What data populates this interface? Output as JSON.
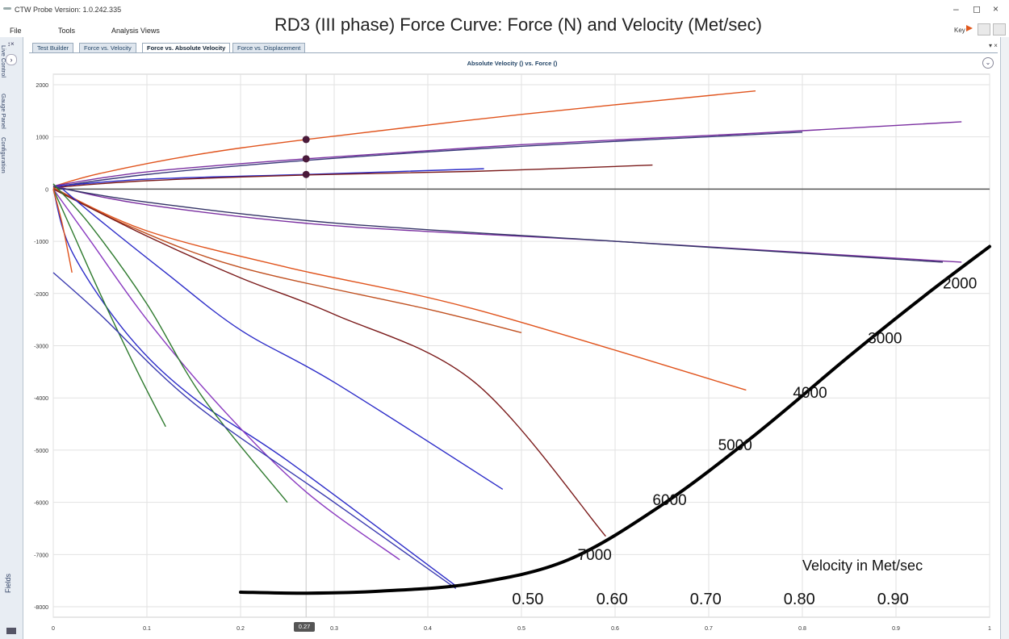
{
  "window": {
    "app_title": "CTW Probe Version: 1.0.242.335",
    "minimize": "–",
    "maximize": "◻",
    "close": "×"
  },
  "overlay_title": "RD3 (III phase) Force Curve: Force (N) and Velocity (Met/sec)",
  "menu": [
    "File",
    "Tools",
    "Analysis Views"
  ],
  "key_label": "Key",
  "tabs": [
    {
      "label": "Test Builder",
      "active": false
    },
    {
      "label": "Force vs. Velocity",
      "active": false
    },
    {
      "label": "Force vs. Absolute Velocity",
      "active": true
    },
    {
      "label": "Force vs. Displacement",
      "active": false
    }
  ],
  "tab_controls": "▾ ×",
  "left_panel": {
    "pin": "↕×",
    "expand": "›",
    "fields_label": "Fields"
  },
  "right_panel_tabs": [
    "Live Control",
    "Gauge Panel",
    "Configuration"
  ],
  "chart": {
    "title": "Absolute Velocity () vs. Force ()",
    "menu_icon": "⌄",
    "cursor_value": "0.27"
  },
  "chart_data": {
    "type": "line",
    "xlim": [
      0,
      1
    ],
    "ylim": [
      -8200,
      2200
    ],
    "x_ticks": [
      "0",
      "0.1",
      "0.2",
      "0.3",
      "0.4",
      "0.5",
      "0.6",
      "0.7",
      "0.8",
      "0.9",
      "1"
    ],
    "y_ticks": [
      "2000",
      "1000",
      "0",
      "-1000",
      "-2000",
      "-3000",
      "-4000",
      "-5000",
      "-6000",
      "-7000",
      "-8000"
    ],
    "grid": true,
    "cursor_x": 0.27,
    "series": [
      {
        "color": "#e0531c",
        "points": [
          [
            0,
            50
          ],
          [
            0.05,
            300
          ],
          [
            0.15,
            650
          ],
          [
            0.27,
            950
          ],
          [
            0.5,
            1430
          ],
          [
            0.75,
            1880
          ]
        ]
      },
      {
        "color": "#7a2fa0",
        "points": [
          [
            0,
            60
          ],
          [
            0.1,
            330
          ],
          [
            0.27,
            580
          ],
          [
            0.5,
            850
          ],
          [
            0.75,
            1070
          ],
          [
            0.97,
            1290
          ]
        ]
      },
      {
        "color": "#3a3a7a",
        "points": [
          [
            0,
            40
          ],
          [
            0.1,
            280
          ],
          [
            0.27,
            550
          ],
          [
            0.5,
            820
          ],
          [
            0.8,
            1090
          ]
        ]
      },
      {
        "color": "#2b2bc8",
        "points": [
          [
            0,
            50
          ],
          [
            0.1,
            190
          ],
          [
            0.27,
            280
          ],
          [
            0.46,
            390
          ]
        ]
      },
      {
        "color": "#7a1a1a",
        "points": [
          [
            0,
            30
          ],
          [
            0.1,
            160
          ],
          [
            0.27,
            270
          ],
          [
            0.45,
            340
          ],
          [
            0.64,
            460
          ]
        ]
      },
      {
        "color": "#7a2fa0",
        "points": [
          [
            0,
            60
          ],
          [
            0.1,
            -300
          ],
          [
            0.3,
            -700
          ],
          [
            0.6,
            -1000
          ],
          [
            0.97,
            -1400
          ]
        ]
      },
      {
        "color": "#333366",
        "points": [
          [
            0,
            40
          ],
          [
            0.1,
            -250
          ],
          [
            0.3,
            -650
          ],
          [
            0.6,
            -1000
          ],
          [
            0.95,
            -1400
          ]
        ]
      },
      {
        "color": "#e0531c",
        "points": [
          [
            0,
            20
          ],
          [
            0.1,
            -800
          ],
          [
            0.25,
            -1500
          ],
          [
            0.45,
            -2300
          ],
          [
            0.74,
            -3850
          ]
        ]
      },
      {
        "color": "#c05020",
        "points": [
          [
            0,
            30
          ],
          [
            0.08,
            -700
          ],
          [
            0.2,
            -1500
          ],
          [
            0.4,
            -2300
          ],
          [
            0.5,
            -2750
          ]
        ]
      },
      {
        "color": "#7a1a1a",
        "points": [
          [
            0,
            0
          ],
          [
            0.1,
            -900
          ],
          [
            0.2,
            -1700
          ],
          [
            0.3,
            -2400
          ],
          [
            0.45,
            -3700
          ],
          [
            0.59,
            -6650
          ]
        ]
      },
      {
        "color": "#2b2bc8",
        "points": [
          [
            0.01,
            0
          ],
          [
            0.05,
            -600
          ],
          [
            0.12,
            -1600
          ],
          [
            0.2,
            -2700
          ],
          [
            0.3,
            -3700
          ],
          [
            0.48,
            -5750
          ]
        ]
      },
      {
        "color": "#2b2bc8",
        "points": [
          [
            0,
            0
          ],
          [
            0.02,
            -1200
          ],
          [
            0.08,
            -2800
          ],
          [
            0.15,
            -4000
          ],
          [
            0.25,
            -5200
          ],
          [
            0.43,
            -7600
          ]
        ]
      },
      {
        "color": "#8a3ac0",
        "points": [
          [
            0,
            0
          ],
          [
            0.04,
            -1000
          ],
          [
            0.1,
            -2500
          ],
          [
            0.18,
            -4200
          ],
          [
            0.27,
            -5800
          ],
          [
            0.37,
            -7100
          ]
        ]
      },
      {
        "color": "#2e7a2e",
        "points": [
          [
            0,
            0
          ],
          [
            0.02,
            -800
          ],
          [
            0.05,
            -2000
          ],
          [
            0.09,
            -3500
          ],
          [
            0.12,
            -4550
          ]
        ]
      },
      {
        "color": "#2e7a2e",
        "points": [
          [
            0,
            100
          ],
          [
            0.04,
            -700
          ],
          [
            0.1,
            -2200
          ],
          [
            0.16,
            -4000
          ],
          [
            0.25,
            -6000
          ]
        ]
      },
      {
        "color": "#3a3ab0",
        "points": [
          [
            0,
            -1600
          ],
          [
            0.05,
            -2400
          ],
          [
            0.15,
            -4100
          ],
          [
            0.3,
            -6000
          ],
          [
            0.43,
            -7650
          ]
        ]
      },
      {
        "color": "#e0531c",
        "points": [
          [
            0,
            0
          ],
          [
            0.01,
            -700
          ],
          [
            0.02,
            -1600
          ]
        ]
      }
    ],
    "markers": [
      {
        "x": 0.27,
        "y": 950
      },
      {
        "x": 0.27,
        "y": 580
      },
      {
        "x": 0.27,
        "y": 280
      }
    ],
    "annotations": {
      "overlay_curve": [
        [
          0.2,
          -7720
        ],
        [
          0.27,
          -7740
        ],
        [
          0.35,
          -7700
        ],
        [
          0.45,
          -7550
        ],
        [
          0.55,
          -7100
        ],
        [
          0.65,
          -6050
        ],
        [
          0.75,
          -4700
        ],
        [
          0.85,
          -3200
        ],
        [
          0.93,
          -2050
        ],
        [
          1.0,
          -1100
        ]
      ],
      "curve_labels": [
        {
          "text": "2000",
          "x": 0.95,
          "y": -1900
        },
        {
          "text": "3000",
          "x": 0.87,
          "y": -2950
        },
        {
          "text": "4000",
          "x": 0.79,
          "y": -4000
        },
        {
          "text": "5000",
          "x": 0.71,
          "y": -5000
        },
        {
          "text": "6000",
          "x": 0.64,
          "y": -6050
        },
        {
          "text": "7000",
          "x": 0.56,
          "y": -7100
        }
      ],
      "velocity_axis_title": "Velocity in Met/sec",
      "velocity_labels": [
        "0.50",
        "0.60",
        "0.70",
        "0.80",
        "0.90"
      ],
      "velocity_label_x": [
        0.49,
        0.58,
        0.68,
        0.78,
        0.88
      ],
      "velocity_label_y": -7950
    }
  }
}
